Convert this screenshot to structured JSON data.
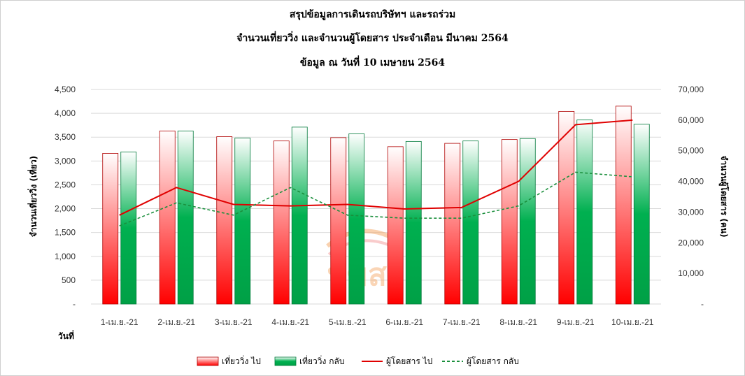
{
  "title": {
    "line1": "สรุปข้อมูลการเดินรถบริษัทฯ และรถร่วม",
    "line2": "จำนวนเที่ยววิ่ง และจำนวนผู้โดยสาร ประจำเดือน มีนาคม 2564",
    "line3": "ข้อมูล ณ วันที่  10 เมษายน 2564"
  },
  "watermark": {
    "text": "บขส",
    "color": "#f4a460"
  },
  "colors": {
    "trips_out": "#ff0000",
    "trips_back": "#00a651",
    "pax_out": "#e00000",
    "pax_back": "#1a8f3c",
    "grid": "#d9d9d9"
  },
  "chart_data": {
    "type": "bar",
    "xlabel": "วันที่",
    "ylabel": "จำนวนเที่ยววิ่ง (เที่ยว)",
    "y2label": "จำนวนผู้โดยสาร (คน)",
    "ylim": [
      0,
      4500
    ],
    "y2lim": [
      0,
      70000
    ],
    "yticks": [
      "-",
      "500",
      "1,000",
      "1,500",
      "2,000",
      "2,500",
      "3,000",
      "3,500",
      "4,000",
      "4,500"
    ],
    "y2ticks": [
      "-",
      "10,000",
      "20,000",
      "30,000",
      "40,000",
      "50,000",
      "60,000",
      "70,000"
    ],
    "categories": [
      "1-เม.ย.-21",
      "2-เม.ย.-21",
      "3-เม.ย.-21",
      "4-เม.ย.-21",
      "5-เม.ย.-21",
      "6-เม.ย.-21",
      "7-เม.ย.-21",
      "8-เม.ย.-21",
      "9-เม.ย.-21",
      "10-เม.ย.-21"
    ],
    "series": [
      {
        "name": "เที่ยววิ่ง ไป",
        "type": "bar",
        "axis": "left",
        "values": [
          3160,
          3630,
          3510,
          3420,
          3490,
          3300,
          3370,
          3450,
          4040,
          4150
        ]
      },
      {
        "name": "เที่ยววิ่ง กลับ",
        "type": "bar",
        "axis": "left",
        "values": [
          3190,
          3630,
          3480,
          3710,
          3570,
          3410,
          3420,
          3470,
          3860,
          3770
        ]
      },
      {
        "name": "ผู้โดยสาร ไป",
        "type": "line",
        "axis": "right",
        "style": "solid",
        "values": [
          29000,
          38000,
          32500,
          32000,
          32500,
          31000,
          31500,
          40000,
          58500,
          60000
        ]
      },
      {
        "name": "ผู้โดยสาร กลับ",
        "type": "line",
        "axis": "right",
        "style": "dashed",
        "values": [
          25500,
          33000,
          29000,
          38000,
          29000,
          28000,
          28000,
          32000,
          43000,
          41500
        ]
      }
    ],
    "grid": true,
    "legend": "bottom"
  }
}
